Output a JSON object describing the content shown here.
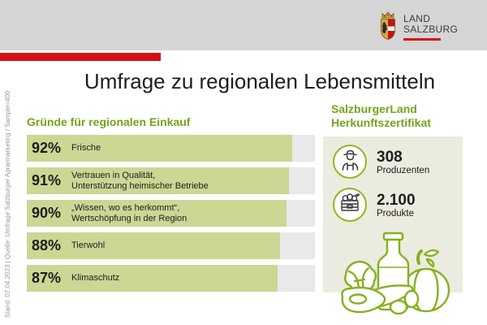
{
  "header": {
    "logo_line1": "LAND",
    "logo_line2": "SALZBURG",
    "crest_icon": "salzburg-crest-icon"
  },
  "title": "Umfrage zu regionalen Lebensmitteln",
  "source_note": "Stand: 07.04.2023 | Quelle: Umfrage Salzburger Agrarmarketing / Sample=400",
  "survey": {
    "heading": "Gründe für regionalen Einkauf",
    "bars": [
      {
        "value": "92%",
        "pct": 92,
        "line1": "Frische",
        "line2": ""
      },
      {
        "value": "91%",
        "pct": 91,
        "line1": "Vertrauen in Qualität,",
        "line2": "Unterstützung heimischer Betriebe"
      },
      {
        "value": "90%",
        "pct": 90,
        "line1": "„Wissen, wo es herkommt“,",
        "line2": "Wertschöpfung in der Region"
      },
      {
        "value": "88%",
        "pct": 88,
        "line1": "Tierwohl",
        "line2": ""
      },
      {
        "value": "87%",
        "pct": 87,
        "line1": "Klimaschutz",
        "line2": ""
      }
    ]
  },
  "certificate": {
    "heading_line1": "SalzburgerLand",
    "heading_line2": "Herkunftszertifikat",
    "stats": [
      {
        "icon": "farmer-icon",
        "value": "308",
        "label": "Produzenten"
      },
      {
        "icon": "vegetable-crate-icon",
        "value": "2.100",
        "label": "Produkte"
      }
    ],
    "illustration_icon": "food-illustration"
  },
  "colors": {
    "band_gray": "#d5d5d5",
    "accent_red": "#d60d15",
    "heading_green": "#76a21c",
    "bar_green": "#cbd794",
    "bar_track_gray": "#e9e9e9",
    "panel_beige": "#ebecdf",
    "illustration_green": "#86b11f"
  },
  "chart_data": {
    "type": "bar",
    "orientation": "horizontal",
    "title": "Umfrage zu regionalen Lebensmitteln",
    "section_title": "Gründe für regionalen Einkauf",
    "categories": [
      "Frische",
      "Vertrauen in Qualität, Unterstützung heimischer Betriebe",
      "„Wissen, wo es herkommt“, Wertschöpfung in der Region",
      "Tierwohl",
      "Klimaschutz"
    ],
    "values": [
      92,
      91,
      90,
      88,
      87
    ],
    "value_suffix": "%",
    "xlim": [
      0,
      100
    ],
    "grid": false,
    "legend": false,
    "side_stats": [
      {
        "value": 308,
        "label": "Produzenten"
      },
      {
        "value": 2100,
        "label": "Produkte"
      }
    ]
  }
}
